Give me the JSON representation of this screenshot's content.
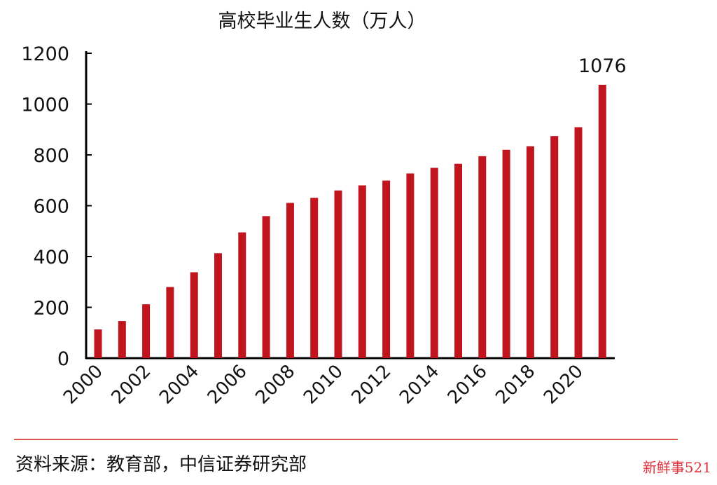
{
  "chart_data": {
    "type": "bar",
    "title": "高校毕业生人数（万人）",
    "categories": [
      "2000",
      "2001",
      "2002",
      "2003",
      "2004",
      "2005",
      "2006",
      "2007",
      "2008",
      "2009",
      "2010",
      "2011",
      "2012",
      "2013",
      "2014",
      "2015",
      "2016",
      "2017",
      "2018",
      "2019",
      "2020",
      "2021"
    ],
    "tick_labels": [
      "2000",
      "2002",
      "2004",
      "2006",
      "2008",
      "2010",
      "2012",
      "2014",
      "2016",
      "2018",
      "2020"
    ],
    "values": [
      113,
      146,
      212,
      280,
      338,
      413,
      495,
      559,
      611,
      631,
      660,
      680,
      699,
      727,
      749,
      765,
      795,
      820,
      834,
      874,
      909,
      1076
    ],
    "data_labels": {
      "last": "1076"
    },
    "ylim": [
      0,
      1200
    ],
    "yticks": [
      "0",
      "200",
      "400",
      "600",
      "800",
      "1000",
      "1200"
    ],
    "xlabel": "",
    "ylabel": "",
    "grid": false,
    "bar_color": "#c0141e"
  },
  "footer": {
    "source": "资料来源：教育部，中信证券研究部",
    "watermark": "新鲜事521"
  }
}
